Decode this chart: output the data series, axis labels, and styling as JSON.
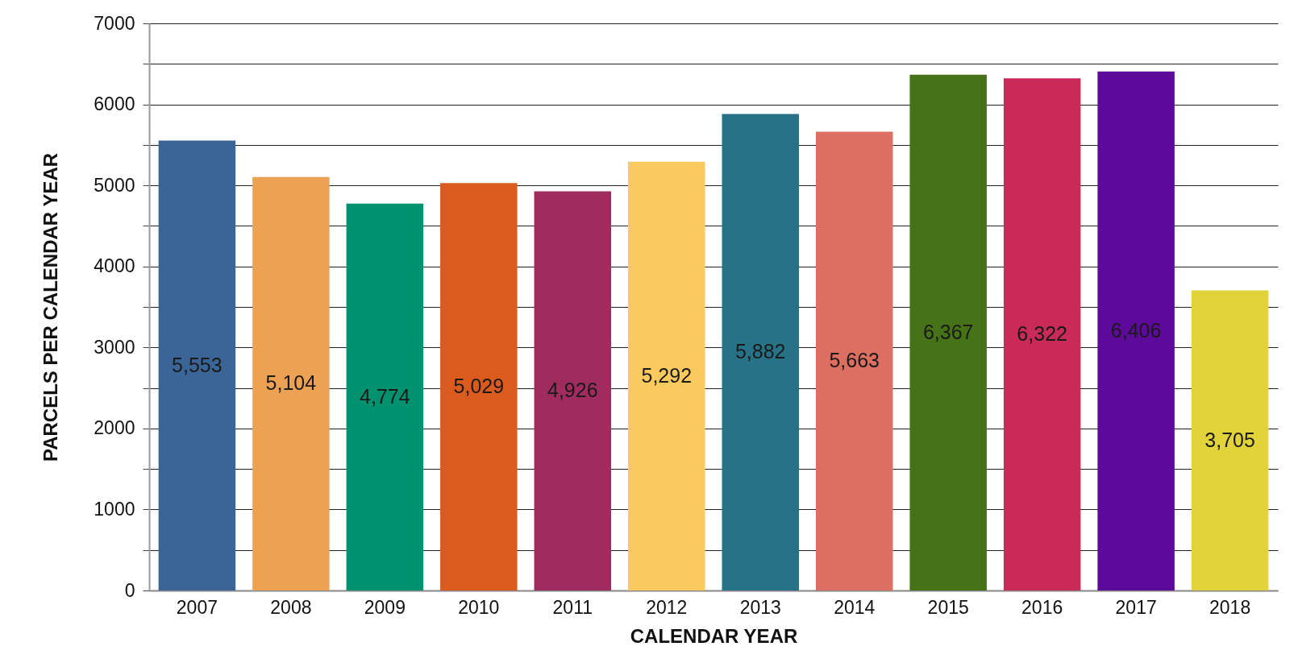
{
  "chart_data": {
    "type": "bar",
    "xlabel": "CALENDAR YEAR",
    "ylabel": "PARCELS PER CALENDAR YEAR",
    "categories": [
      "2007",
      "2008",
      "2009",
      "2010",
      "2011",
      "2012",
      "2013",
      "2014",
      "2015",
      "2016",
      "2017",
      "2018"
    ],
    "values": [
      5553,
      5104,
      4774,
      5029,
      4926,
      5292,
      5882,
      5663,
      6367,
      6322,
      6406,
      3705
    ],
    "colors": [
      "#3b6596",
      "#eda253",
      "#00916e",
      "#db5a1e",
      "#9f2b5f",
      "#fbca5e",
      "#277287",
      "#dc6f62",
      "#467318",
      "#c92a57",
      "#5d0a9b",
      "#e2d33b"
    ],
    "value_labels": [
      "5,553",
      "5,104",
      "4,774",
      "5,029",
      "4,926",
      "5,292",
      "5,882",
      "5,663",
      "6,367",
      "6,322",
      "6,406",
      "3,705"
    ],
    "ylim": [
      0,
      7000
    ],
    "yticks": [
      0,
      {
        "value": 500,
        "label": null
      },
      1000,
      {
        "value": 1500,
        "label": null
      },
      2000,
      {
        "value": 2500,
        "label": null
      },
      3000,
      {
        "value": 3500,
        "label": null
      },
      4000,
      {
        "value": 4500,
        "label": null
      },
      5000,
      {
        "value": 5500,
        "label": null
      },
      6000,
      {
        "value": 6500,
        "label": null
      },
      7000
    ],
    "grid": "y"
  }
}
